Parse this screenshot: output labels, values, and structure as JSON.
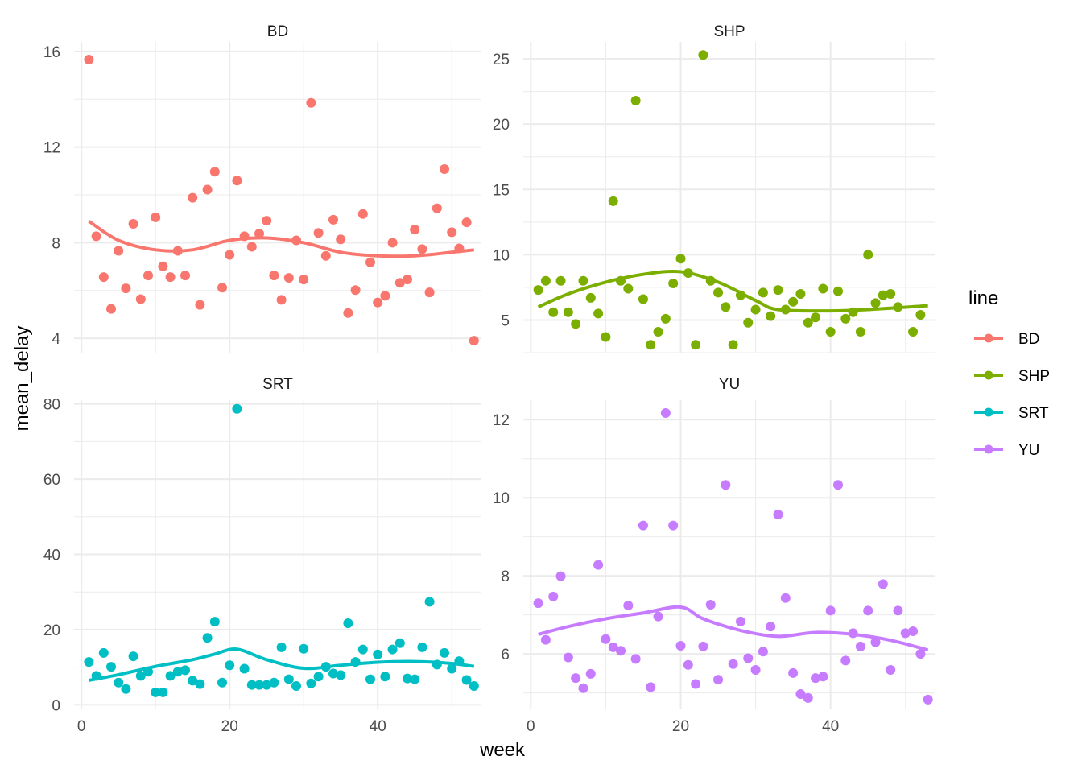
{
  "chart_data": {
    "type": "scatter",
    "subtype": "faceted scatter with loess smooth",
    "xlabel": "week",
    "ylabel": "mean_delay",
    "legend": {
      "title": "line",
      "placement": "right",
      "entries": [
        "BD",
        "SHP",
        "SRT",
        "YU"
      ]
    },
    "grid": true,
    "facets": [
      {
        "name": "BD",
        "color": "#F8766D",
        "xlim": [
          -1,
          54
        ],
        "ylim": [
          3.4,
          16.4
        ],
        "x_ticks": [
          0,
          20,
          40
        ],
        "y_ticks": [
          4,
          8,
          12,
          16
        ],
        "x": [
          1,
          2,
          3,
          4,
          5,
          6,
          7,
          8,
          9,
          10,
          11,
          12,
          13,
          14,
          15,
          16,
          17,
          18,
          19,
          20,
          21,
          22,
          23,
          24,
          25,
          26,
          27,
          28,
          29,
          30,
          31,
          32,
          33,
          34,
          35,
          36,
          37,
          38,
          39,
          40,
          41,
          42,
          43,
          44,
          45,
          46,
          47,
          48,
          49,
          50,
          51,
          52,
          53
        ],
        "y": [
          15.66,
          8.27,
          6.56,
          5.23,
          7.66,
          6.09,
          8.79,
          5.64,
          6.63,
          9.06,
          7.01,
          6.56,
          7.66,
          6.63,
          9.88,
          5.4,
          10.22,
          10.97,
          6.12,
          7.49,
          10.6,
          8.27,
          7.83,
          8.38,
          8.92,
          6.63,
          5.61,
          6.53,
          8.1,
          6.46,
          13.85,
          8.41,
          7.45,
          8.96,
          8.14,
          5.06,
          6.02,
          9.2,
          7.18,
          5.5,
          5.78,
          8.0,
          6.32,
          6.46,
          8.55,
          7.73,
          5.92,
          9.44,
          11.08,
          8.44,
          7.76,
          8.85,
          3.9
        ],
        "smooth": {
          "x": [
            1,
            5,
            10,
            15,
            20,
            25,
            30,
            35,
            40,
            45,
            50,
            53
          ],
          "y": [
            8.9,
            8.1,
            7.7,
            7.7,
            8.1,
            8.2,
            8.0,
            7.6,
            7.45,
            7.45,
            7.6,
            7.7
          ]
        }
      },
      {
        "name": "SHP",
        "color": "#7CAE00",
        "xlim": [
          -1,
          54
        ],
        "ylim": [
          2.5,
          26.3
        ],
        "x_ticks": [
          0,
          20,
          40
        ],
        "y_ticks": [
          5,
          10,
          15,
          20,
          25
        ],
        "x": [
          1,
          2,
          3,
          4,
          5,
          6,
          7,
          8,
          9,
          10,
          11,
          12,
          13,
          14,
          15,
          16,
          17,
          18,
          19,
          20,
          21,
          22,
          23,
          24,
          25,
          26,
          27,
          28,
          29,
          30,
          31,
          32,
          33,
          34,
          35,
          36,
          37,
          38,
          39,
          40,
          41,
          42,
          43,
          44,
          45,
          46,
          47,
          48,
          49,
          51,
          52
        ],
        "y": [
          7.3,
          8.0,
          5.6,
          8.0,
          5.6,
          4.7,
          8.0,
          6.7,
          5.5,
          3.7,
          14.1,
          8.0,
          7.4,
          21.8,
          6.6,
          3.1,
          4.1,
          5.1,
          7.8,
          9.7,
          8.6,
          3.1,
          25.3,
          8.0,
          7.1,
          6.0,
          3.1,
          6.9,
          4.8,
          5.8,
          7.1,
          5.3,
          7.3,
          5.8,
          6.4,
          7.0,
          4.8,
          5.2,
          7.4,
          4.1,
          7.2,
          5.1,
          5.6,
          4.1,
          10.0,
          6.3,
          6.9,
          7.0,
          6.0,
          4.1,
          5.4
        ],
        "smooth": {
          "x": [
            1,
            5,
            10,
            15,
            20,
            25,
            30,
            33,
            40,
            45,
            53
          ],
          "y": [
            6.0,
            7.0,
            7.9,
            8.5,
            8.7,
            7.9,
            6.5,
            5.8,
            5.7,
            5.8,
            6.1
          ]
        }
      },
      {
        "name": "SRT",
        "color": "#00BFC4",
        "xlim": [
          -1,
          54
        ],
        "ylim": [
          -1,
          81
        ],
        "x_ticks": [
          0,
          20,
          40
        ],
        "y_ticks": [
          0,
          20,
          40,
          60,
          80
        ],
        "x": [
          1,
          2,
          3,
          4,
          5,
          6,
          7,
          8,
          9,
          10,
          11,
          12,
          13,
          14,
          15,
          16,
          17,
          18,
          19,
          20,
          21,
          22,
          23,
          24,
          25,
          26,
          27,
          28,
          29,
          30,
          31,
          32,
          33,
          34,
          35,
          36,
          37,
          38,
          39,
          40,
          41,
          42,
          43,
          44,
          45,
          46,
          47,
          48,
          49,
          50,
          51,
          52,
          53
        ],
        "y": [
          11.4,
          7.7,
          13.8,
          10.1,
          5.9,
          4.2,
          12.9,
          7.7,
          8.8,
          3.3,
          3.3,
          7.7,
          8.8,
          9.2,
          6.4,
          5.5,
          17.8,
          22.1,
          5.9,
          10.5,
          78.7,
          9.6,
          5.3,
          5.3,
          5.3,
          5.9,
          15.3,
          6.8,
          5.0,
          14.9,
          5.7,
          7.5,
          10.1,
          8.3,
          7.9,
          21.7,
          11.4,
          14.7,
          6.8,
          13.4,
          7.5,
          14.7,
          16.4,
          7.0,
          6.8,
          15.3,
          27.4,
          10.7,
          13.8,
          9.6,
          11.6,
          6.6,
          5.0
        ],
        "smooth": {
          "x": [
            1,
            5,
            10,
            15,
            18,
            21,
            25,
            30,
            35,
            40,
            45,
            50,
            53
          ],
          "y": [
            6.5,
            8.0,
            10.2,
            12.0,
            13.5,
            14.8,
            12.0,
            9.7,
            10.5,
            11.3,
            11.5,
            11.0,
            10.2
          ]
        }
      },
      {
        "name": "YU",
        "color": "#C77CFF",
        "xlim": [
          -1,
          54
        ],
        "ylim": [
          4.6,
          12.5
        ],
        "x_ticks": [
          0,
          20,
          40
        ],
        "y_ticks": [
          6,
          8,
          10,
          12
        ],
        "x": [
          1,
          2,
          3,
          4,
          5,
          6,
          7,
          8,
          9,
          10,
          11,
          12,
          13,
          14,
          15,
          16,
          17,
          18,
          19,
          20,
          21,
          22,
          23,
          24,
          25,
          26,
          27,
          28,
          29,
          30,
          31,
          32,
          33,
          34,
          35,
          36,
          37,
          38,
          39,
          40,
          41,
          42,
          43,
          44,
          45,
          46,
          47,
          48,
          49,
          50,
          51,
          52,
          53
        ],
        "y": [
          7.3,
          6.36,
          7.47,
          7.99,
          5.91,
          5.38,
          5.12,
          5.49,
          8.28,
          6.38,
          6.17,
          6.08,
          7.24,
          5.87,
          9.29,
          5.15,
          6.96,
          12.17,
          9.29,
          6.21,
          5.72,
          5.23,
          6.19,
          7.26,
          5.34,
          10.33,
          5.74,
          6.83,
          5.89,
          5.59,
          6.06,
          6.7,
          9.57,
          7.43,
          5.51,
          4.97,
          4.87,
          5.38,
          5.42,
          7.11,
          10.33,
          5.83,
          6.53,
          6.19,
          7.11,
          6.3,
          7.79,
          5.59,
          7.11,
          6.53,
          6.58,
          6.0,
          4.83
        ],
        "smooth": {
          "x": [
            1,
            5,
            10,
            15,
            20,
            23,
            28,
            33,
            38,
            43,
            48,
            53
          ],
          "y": [
            6.5,
            6.7,
            6.9,
            7.05,
            7.2,
            6.9,
            6.6,
            6.45,
            6.55,
            6.5,
            6.35,
            6.1
          ]
        }
      }
    ]
  }
}
